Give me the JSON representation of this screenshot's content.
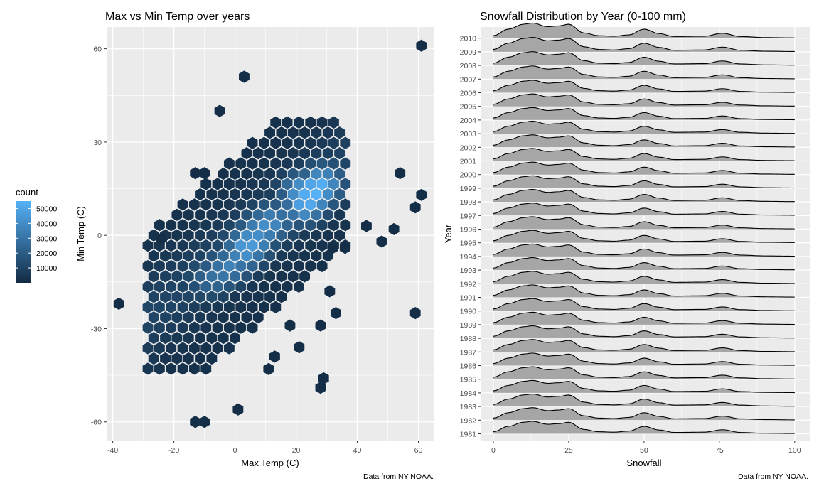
{
  "chart_data": [
    {
      "type": "hexbin",
      "title": "Max vs Min Temp over years",
      "xlabel": "Max Temp (C)",
      "ylabel": "Min Temp (C)",
      "xlim": [
        -42,
        65
      ],
      "ylim": [
        -66,
        67
      ],
      "xticks": [
        -40,
        -20,
        0,
        20,
        40,
        60
      ],
      "xtick_labels": [
        "-40",
        "-20",
        "0",
        "20",
        "40",
        "60"
      ],
      "yticks": [
        -60,
        -30,
        0,
        30,
        60
      ],
      "ytick_labels": [
        "-60",
        "-30",
        "0",
        "30",
        "60"
      ],
      "grid": true,
      "caption": "Data from NY NOAA.",
      "legend": {
        "title": "count",
        "position": "left",
        "breaks": [
          10000,
          20000,
          30000,
          40000,
          50000
        ],
        "labels": [
          "10000",
          "20000",
          "30000",
          "40000",
          "50000"
        ],
        "range": [
          1,
          55000
        ],
        "color_low": "#132b43",
        "color_high": "#56b1f7"
      },
      "hexes": [
        {
          "x": 26,
          "y": 14,
          "count": 55000
        },
        {
          "x": 24.5,
          "y": 12,
          "count": 52000
        },
        {
          "x": 28,
          "y": 16,
          "count": 48000
        },
        {
          "x": 23,
          "y": 10,
          "count": 46000
        },
        {
          "x": 22,
          "y": 14,
          "count": 42000
        },
        {
          "x": 4,
          "y": -4,
          "count": 42000
        },
        {
          "x": 6,
          "y": -2,
          "count": 40000
        },
        {
          "x": 3,
          "y": -6,
          "count": 36000
        },
        {
          "x": 9,
          "y": 2,
          "count": 35000
        },
        {
          "x": 12,
          "y": 4,
          "count": 32000
        },
        {
          "x": -1,
          "y": -10,
          "count": 30000
        },
        {
          "x": -4,
          "y": -12,
          "count": 26000
        },
        {
          "x": -7,
          "y": -14,
          "count": 22000
        }
      ],
      "outliers": [
        {
          "x": 61,
          "y": 61
        },
        {
          "x": 3,
          "y": 51
        },
        {
          "x": -5,
          "y": 40
        },
        {
          "x": 54,
          "y": 20
        },
        {
          "x": 61,
          "y": 13
        },
        {
          "x": 59,
          "y": 9
        },
        {
          "x": 43,
          "y": 3
        },
        {
          "x": 48,
          "y": -2
        },
        {
          "x": 52,
          "y": 2
        },
        {
          "x": 33,
          "y": -25
        },
        {
          "x": 59,
          "y": -25
        },
        {
          "x": 28,
          "y": -29
        },
        {
          "x": 29,
          "y": -46
        },
        {
          "x": 28,
          "y": -49
        },
        {
          "x": 1,
          "y": -56
        },
        {
          "x": -13,
          "y": -60
        },
        {
          "x": -10,
          "y": -60
        },
        {
          "x": -38,
          "y": -22
        },
        {
          "x": 11,
          "y": -43
        },
        {
          "x": 13,
          "y": -39
        },
        {
          "x": 21,
          "y": -36
        },
        {
          "x": 18,
          "y": -29
        },
        {
          "x": 31,
          "y": -18
        },
        {
          "x": 36,
          "y": -4
        },
        {
          "x": 32,
          "y": -4
        },
        {
          "x": -24,
          "y": -1
        },
        {
          "x": -13,
          "y": 20
        },
        {
          "x": -10,
          "y": 20
        }
      ]
    },
    {
      "type": "ridgeline",
      "title": "Snowfall Distribution by Year (0-100 mm)",
      "xlabel": "Snowfall",
      "ylabel": "Year",
      "xlim": [
        -4,
        105
      ],
      "xticks": [
        0,
        25,
        50,
        75,
        100
      ],
      "xtick_labels": [
        "0",
        "25",
        "50",
        "75",
        "100"
      ],
      "categories": [
        "1981",
        "1982",
        "1983",
        "1984",
        "1985",
        "1986",
        "1987",
        "1988",
        "1989",
        "1990",
        "1991",
        "1992",
        "1993",
        "1994",
        "1995",
        "1996",
        "1997",
        "1998",
        "1999",
        "2000",
        "2001",
        "2002",
        "2003",
        "2004",
        "2005",
        "2006",
        "2007",
        "2008",
        "2009",
        "2010"
      ],
      "density_x": [
        0,
        5,
        10,
        13,
        18,
        22,
        25,
        30,
        35,
        40,
        45,
        50,
        55,
        60,
        70,
        76,
        82,
        90,
        100
      ],
      "density_shape": [
        0.15,
        0.55,
        0.85,
        0.92,
        0.7,
        0.75,
        0.85,
        0.32,
        0.15,
        0.12,
        0.2,
        0.55,
        0.28,
        0.1,
        0.12,
        0.3,
        0.1,
        0.04,
        0.02
      ],
      "ridge_peak_height_in_rows": [
        0.95,
        0.95,
        0.95,
        0.95,
        0.95,
        0.95,
        0.95,
        0.95,
        0.95,
        0.95,
        0.95,
        0.95,
        0.95,
        0.95,
        0.95,
        0.95,
        0.95,
        0.95,
        0.95,
        0.95,
        0.95,
        0.95,
        0.95,
        0.95,
        0.95,
        0.95,
        1.0,
        1.05,
        1.1,
        1.15
      ],
      "fill_color": "#a6a6a6",
      "line_color": "#000000",
      "grid": true,
      "caption": "Data from NY NOAA."
    }
  ]
}
